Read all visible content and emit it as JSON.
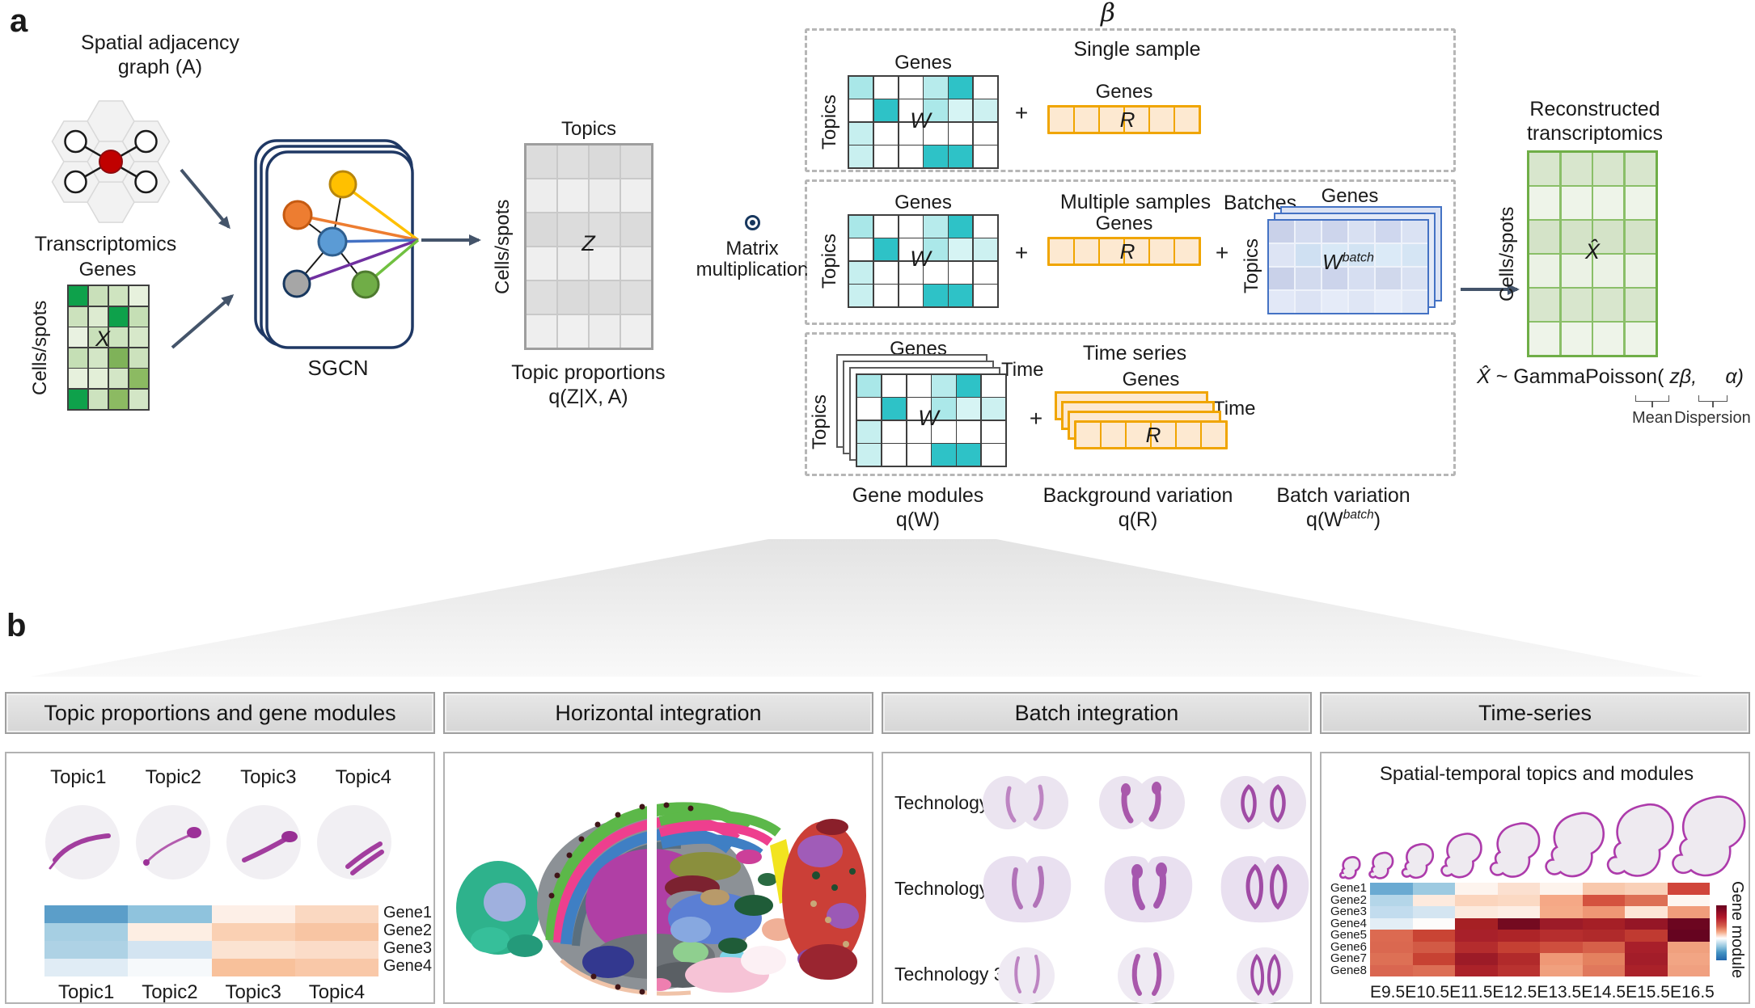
{
  "colors": {
    "arrow": "#44546a",
    "sgcn_frame": "#1f3864",
    "teal_accent": "#2ec2c7",
    "orange_accent": "#f0a500",
    "blue_accent": "#4472c4",
    "green_accent": "#70ad47",
    "purple_stain": "#a44ba5",
    "red_node": "#c00000"
  },
  "panel_a": {
    "label": "a",
    "spatial_graph": {
      "title_line1": "Spatial adjacency",
      "title_line2": "graph (A)"
    },
    "transcriptomics": {
      "title": "Transcriptomics",
      "cols_label": "Genes",
      "rows_label": "Cells/spots",
      "matrix_label": "X",
      "cells": [
        [
          "#0ea14b",
          "#c9e0ba",
          "#cfe4c0",
          "#e7f1dd"
        ],
        [
          "#cce2bd",
          "#ddebd1",
          "#0ea14b",
          "#c5dfb5"
        ],
        [
          "#e9f2e1",
          "#c9e0ba",
          "#cde3bf",
          "#d7e8ca"
        ],
        [
          "#c5dfb5",
          "#d3e6c6",
          "#7fb259",
          "#cce2bd"
        ],
        [
          "#e7f1dd",
          "#e3efd8",
          "#d3e6c6",
          "#8cba62"
        ],
        [
          "#0ea14b",
          "#cde3bf",
          "#8cba62",
          "#d3e6c6"
        ]
      ]
    },
    "sgcn": {
      "label": "SGCN"
    },
    "topic_matrix": {
      "cols_label": "Topics",
      "rows_label": "Cells/spots",
      "matrix_label": "Z",
      "caption_line1": "Topic proportions",
      "caption_line2": "q(Z|X, A)",
      "cells": [
        [
          "#dcdcdc",
          "#dedede",
          "#dadada",
          "#dedede"
        ],
        [
          "#ededed",
          "#efefef",
          "#ececec",
          "#efefef"
        ],
        [
          "#d9d9d9",
          "#dcdcdc",
          "#dedede",
          "#dbdbdb"
        ],
        [
          "#efefef",
          "#ededed",
          "#f0f0f0",
          "#ededed"
        ],
        [
          "#dedede",
          "#dadada",
          "#dcdcdc",
          "#dedede"
        ],
        [
          "#eeeeee",
          "#f0f0f0",
          "#ededed",
          "#efefef"
        ]
      ]
    },
    "matmul": {
      "line1": "Matrix",
      "line2": "multiplication"
    },
    "beta": {
      "symbol": "β",
      "w_cells": [
        [
          "#a9e7e8",
          "#ffffff",
          "#ffffff",
          "#b7ebec",
          "#2ec2c7",
          "#ffffff"
        ],
        [
          "#ffffff",
          "#2ec2c7",
          "#ffffff",
          "#abe8e9",
          "#d6f4f4",
          "#cdf1f1"
        ],
        [
          "#c6efef",
          "#ffffff",
          "#ffffff",
          "#ffffff",
          "#ffffff",
          "#ffffff"
        ],
        [
          "#c9f0f0",
          "#ffffff",
          "#ffffff",
          "#2ec2c7",
          "#2ec2c7",
          "#ffffff"
        ]
      ],
      "r_cells": [
        [
          "#fde9d1",
          "#fde9d1",
          "#fde9d1",
          "#fde9d1",
          "#fde9d1",
          "#fde9d1"
        ]
      ],
      "wbatch_cells": [
        [
          "#c9d1e9",
          "#d4dcf0",
          "#cdd5ec",
          "#d8e0f2",
          "#cfd7ee",
          "#dae2f3"
        ],
        [
          "#dde4f4",
          "#cfe0f2",
          "#d8e8f6",
          "#d2e3f3",
          "#dbeaf7",
          "#d5e5f4"
        ],
        [
          "#c9d1e9",
          "#d2daee",
          "#ccd4eb",
          "#d6def1",
          "#d0d8ec",
          "#d9e1f2"
        ],
        [
          "#e2e8f7",
          "#dce3f4",
          "#e5ebf8",
          "#dfe6f5",
          "#e7edf9",
          "#e1e8f6"
        ]
      ],
      "single_sample": {
        "title": "Single sample",
        "w_cols_label": "Genes",
        "w_rows_label": "Topics",
        "w_label": "W",
        "plus": "+",
        "r_cols_label": "Genes",
        "r_label": "R"
      },
      "multiple_samples": {
        "title": "Multiple samples",
        "batches_label": "Batches",
        "w_cols_label": "Genes",
        "w_rows_label": "Topics",
        "w_label": "W",
        "plus1": "+",
        "plus2": "+",
        "r_cols_label": "Genes",
        "r_label": "R",
        "wb_cols_label": "Genes",
        "wb_rows_label": "Topics",
        "wb_label_base": "W",
        "wb_label_sup": "batch"
      },
      "time_series": {
        "title": "Time series",
        "w_cols_label": "Genes",
        "w_rows_label": "Topics",
        "w_label": "W",
        "w_time_label": "Time",
        "plus": "+",
        "r_cols_label": "Genes",
        "r_label": "R",
        "r_time_label": "Time"
      },
      "captions": {
        "gene_modules_line1": "Gene modules",
        "gene_modules_line2": "q(W)",
        "background_line1": "Background variation",
        "background_line2": "q(R)",
        "batch_line1": "Batch variation",
        "batch_line2_pre": "q(W",
        "batch_line2_sup": "batch",
        "batch_line2_post": ")"
      }
    },
    "reconstructed": {
      "title_line1": "Reconstructed",
      "title_line2": "transcriptomics",
      "rows_label": "Cells/spots",
      "matrix_label": "X̂",
      "cells": [
        [
          "#d8e6cd",
          "#d8e6cd",
          "#d8e6cd",
          "#d8e6cd"
        ],
        [
          "#eef4e9",
          "#eef4e9",
          "#eef4e9",
          "#eef4e9"
        ],
        [
          "#d4e3c8",
          "#d4e3c8",
          "#d4e3c8",
          "#d4e3c8"
        ],
        [
          "#ebf2e5",
          "#ebf2e5",
          "#ebf2e5",
          "#ebf2e5"
        ],
        [
          "#d8e6cd",
          "#d8e6cd",
          "#d8e6cd",
          "#d8e6cd"
        ],
        [
          "#eef4e9",
          "#eef4e9",
          "#eef4e9",
          "#eef4e9"
        ]
      ],
      "formula": {
        "x": "X̂",
        "mid": "~ GammaPoisson(",
        "zb": "zβ,",
        "alpha": "α)",
        "mean_label": "Mean",
        "dispersion_label": "Dispersion"
      }
    }
  },
  "panel_b": {
    "label": "b",
    "headers": [
      "Topic proportions and gene modules",
      "Horizontal integration",
      "Batch integration",
      "Time-series"
    ],
    "topics_section": {
      "circle_labels": [
        "Topic1",
        "Topic2",
        "Topic3",
        "Topic4"
      ]
    },
    "batch_section": {
      "row_labels": [
        "Technology 1",
        "Technology 2",
        "Technology 3"
      ]
    },
    "time_section": {
      "title": "Spatial-temporal topics and modules",
      "colorbar_label": "Gene module"
    }
  },
  "chart_data": [
    {
      "id": "topic_gene_module_heatmap",
      "type": "heatmap",
      "x_labels": [
        "Topic1",
        "Topic2",
        "Topic3",
        "Topic4"
      ],
      "y_labels": [
        "Gene1",
        "Gene2",
        "Gene3",
        "Gene4"
      ],
      "cell_colors": [
        [
          "#5b9ec9",
          "#8fc3dd",
          "#fdefe7",
          "#fad8c1"
        ],
        [
          "#a6cfe3",
          "#fdeee3",
          "#fad0b3",
          "#f8c5a3"
        ],
        [
          "#aed2e5",
          "#d3e4f1",
          "#fbe3d2",
          "#fbdcc8"
        ],
        [
          "#e0ecf5",
          "#f6f9fb",
          "#f8c19b",
          "#f9c8a8"
        ]
      ]
    },
    {
      "id": "spatial_temporal_heatmap",
      "type": "heatmap",
      "x_labels": [
        "E9.5",
        "E10.5",
        "E11.5",
        "E12.5",
        "E13.5",
        "E14.5",
        "E15.5",
        "E16.5"
      ],
      "y_labels": [
        "Gene1",
        "Gene2",
        "Gene3",
        "Gene4",
        "Gene5",
        "Gene6",
        "Gene7",
        "Gene8"
      ],
      "colorbar_label": "Gene module",
      "cell_colors": [
        [
          "#6aaad2",
          "#9dcae1",
          "#fdf4ee",
          "#fbe0d0",
          "#fdf3ec",
          "#f8c8ac",
          "#f9d0b8",
          "#d0453a"
        ],
        [
          "#b4d6e9",
          "#fdeade",
          "#fbd5bd",
          "#fbd9c3",
          "#f5a886",
          "#d4523f",
          "#dd6f55",
          "#fdf6f1"
        ],
        [
          "#c2dcee",
          "#d4e5f1",
          "#fceadd",
          "#fdeee4",
          "#f5ab88",
          "#ef9775",
          "#fde5d6",
          "#f09d7b"
        ],
        [
          "#e3eef6",
          "#fdfcfb",
          "#a62024",
          "#740a20",
          "#9c1b28",
          "#a51f26",
          "#951626",
          "#6c0620"
        ],
        [
          "#dc6a51",
          "#c94434",
          "#a8202a",
          "#ad2428",
          "#b62e2e",
          "#b02a2b",
          "#c03a31",
          "#660420"
        ],
        [
          "#da6850",
          "#d25a45",
          "#b42c2d",
          "#c54033",
          "#ce4f3e",
          "#d66049",
          "#a81f2a",
          "#f0a07e"
        ],
        [
          "#dd7055",
          "#c74233",
          "#9c1b27",
          "#b12a2b",
          "#ef9876",
          "#e4815f",
          "#a31d29",
          "#f2a584"
        ],
        [
          "#d96650",
          "#dc6e55",
          "#ab2229",
          "#b93230",
          "#f0a07e",
          "#e0785c",
          "#aa2129",
          "#f0a080"
        ]
      ]
    }
  ]
}
